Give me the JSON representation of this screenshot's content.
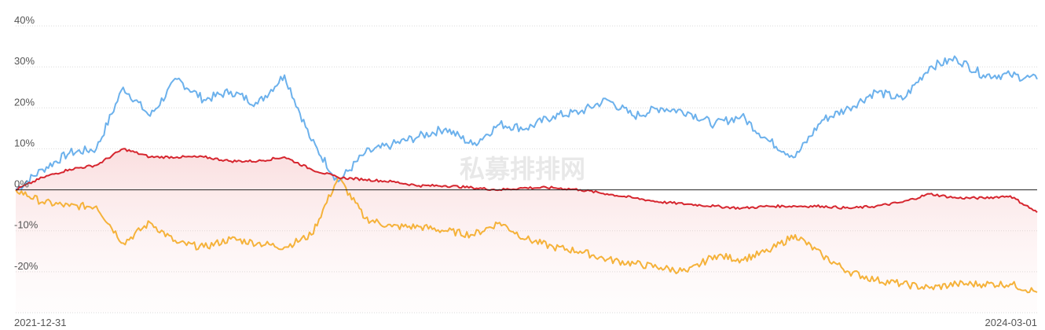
{
  "watermark": "私募排排网",
  "chart_data": {
    "type": "line",
    "title": "",
    "xlabel": "",
    "ylabel": "",
    "x_start": "2021-12-31",
    "x_end": "2024-03-01",
    "x_tick_labels": [
      "2021-12-31",
      "2024-03-01"
    ],
    "ylim": [
      -30,
      40
    ],
    "y_ticks": [
      40,
      30,
      20,
      10,
      0,
      -10,
      -20
    ],
    "y_tick_labels": [
      "40%",
      "30%",
      "20%",
      "10%",
      "0%",
      "-10%",
      "-20%"
    ],
    "grid": true,
    "legend": "none",
    "x": [
      "2021-12-31",
      "2022-01-21",
      "2022-02-11",
      "2022-03-04",
      "2022-03-25",
      "2022-04-15",
      "2022-05-06",
      "2022-05-27",
      "2022-06-17",
      "2022-07-08",
      "2022-07-29",
      "2022-08-19",
      "2022-09-09",
      "2022-09-30",
      "2022-10-21",
      "2022-11-11",
      "2022-12-02",
      "2022-12-23",
      "2023-01-13",
      "2023-02-03",
      "2023-02-24",
      "2023-03-17",
      "2023-04-07",
      "2023-04-28",
      "2023-05-19",
      "2023-06-09",
      "2023-06-30",
      "2023-07-21",
      "2023-08-11",
      "2023-09-01",
      "2023-09-22",
      "2023-10-13",
      "2023-11-03",
      "2023-11-24",
      "2023-12-15",
      "2024-01-05",
      "2024-01-26",
      "2024-02-16",
      "2024-03-01"
    ],
    "series": [
      {
        "color": "#6cb1ec",
        "values": [
          0.0,
          5.0,
          9.0,
          10.0,
          25.0,
          18.0,
          27.0,
          22.0,
          24.0,
          21.0,
          28.0,
          12.0,
          2.0,
          9.0,
          11.0,
          13.0,
          15.0,
          11.0,
          16.0,
          15.0,
          18.0,
          19.0,
          22.0,
          18.0,
          20.0,
          19.0,
          16.0,
          18.0,
          12.0,
          8.0,
          17.0,
          20.0,
          24.0,
          22.0,
          30.0,
          32.0,
          28.0,
          28.0,
          27.0
        ]
      },
      {
        "color": "#f5b23a",
        "values": [
          0.0,
          -3.0,
          -4.0,
          -4.0,
          -13.0,
          -8.0,
          -13.0,
          -14.0,
          -12.0,
          -13.0,
          -14.0,
          -11.0,
          3.0,
          -7.0,
          -9.0,
          -9.0,
          -10.0,
          -11.0,
          -8.0,
          -12.0,
          -14.0,
          -15.0,
          -17.0,
          -18.0,
          -19.0,
          -20.0,
          -16.0,
          -17.0,
          -15.0,
          -11.0,
          -16.0,
          -20.0,
          -22.0,
          -23.0,
          -24.0,
          -23.0,
          -23.0,
          -23.0,
          -25.0
        ]
      },
      {
        "color": "#d6262f",
        "values": [
          0.0,
          3.0,
          5.0,
          6.0,
          10.0,
          8.0,
          8.0,
          8.0,
          7.0,
          7.0,
          8.0,
          5.0,
          3.0,
          2.5,
          2.0,
          1.0,
          1.0,
          0.5,
          0.0,
          0.5,
          0.5,
          0.0,
          -1.0,
          -2.0,
          -3.0,
          -3.5,
          -4.0,
          -4.5,
          -4.0,
          -4.0,
          -4.0,
          -4.5,
          -4.0,
          -3.0,
          -1.0,
          -2.0,
          -2.0,
          -1.5,
          -5.5
        ]
      }
    ]
  }
}
